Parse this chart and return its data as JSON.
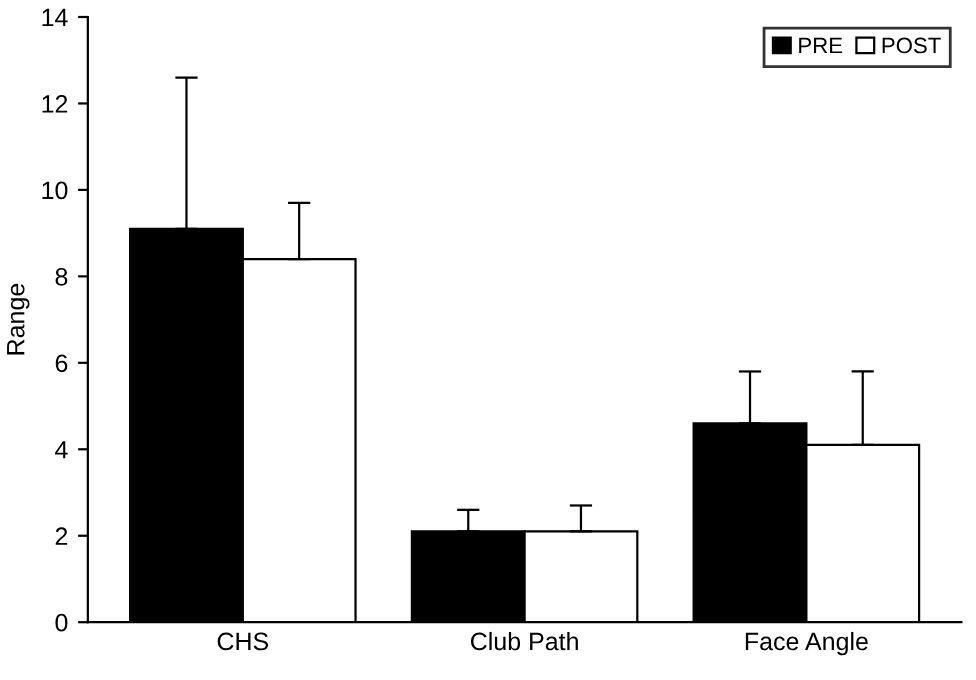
{
  "chart_data": {
    "type": "bar",
    "ylabel": "Range",
    "categories": [
      "CHS",
      "Club Path",
      "Face Angle"
    ],
    "series": [
      {
        "name": "PRE",
        "color": "#000000",
        "values": [
          9.1,
          2.1,
          4.6
        ],
        "errors": [
          [
            9.1,
            12.6
          ],
          [
            2.1,
            2.6
          ],
          [
            4.6,
            5.8
          ]
        ]
      },
      {
        "name": "POST",
        "color": "#ffffff",
        "values": [
          8.4,
          2.1,
          4.1
        ],
        "errors": [
          [
            8.4,
            9.7
          ],
          [
            2.1,
            2.7
          ],
          [
            4.1,
            5.8
          ]
        ]
      }
    ],
    "ylim": [
      0,
      14
    ],
    "yticks": [
      0,
      2,
      4,
      6,
      8,
      10,
      12,
      14
    ],
    "grid": false,
    "legend": "top right"
  }
}
